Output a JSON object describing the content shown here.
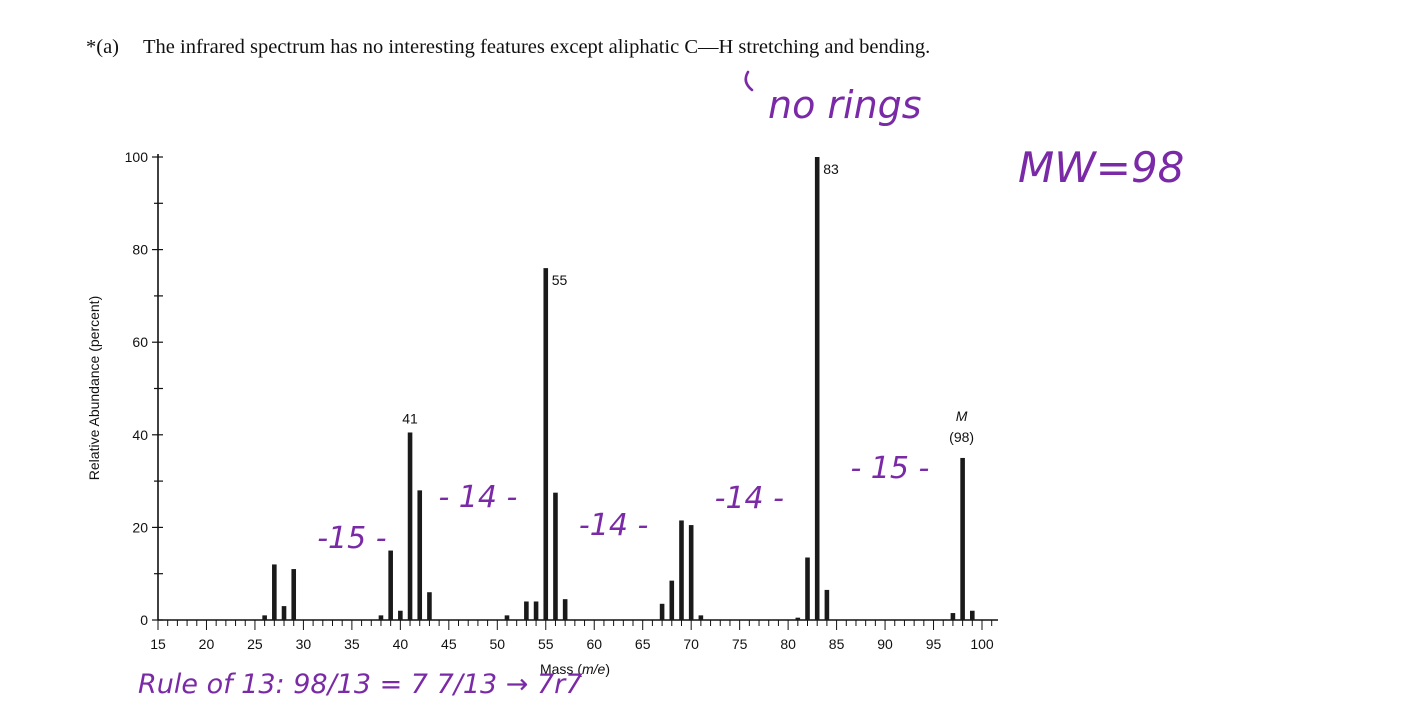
{
  "problem": {
    "number": "*(a)",
    "text": "The infrared spectrum has no interesting features except aliphatic C—H stretching and bending."
  },
  "chart_data": {
    "type": "bar",
    "xlabel_prefix": "Mass (",
    "xlabel_italic": "m/e",
    "xlabel_suffix": ")",
    "ylabel": "Relative Abundance (percent)",
    "xlim": [
      15,
      100
    ],
    "ylim": [
      0,
      100
    ],
    "xticks": [
      15,
      20,
      25,
      30,
      35,
      40,
      45,
      50,
      55,
      60,
      65,
      70,
      75,
      80,
      85,
      90,
      95,
      100
    ],
    "yticks": [
      0,
      20,
      40,
      60,
      80,
      100
    ],
    "peaks": [
      {
        "x": 26,
        "y": 1
      },
      {
        "x": 27,
        "y": 12
      },
      {
        "x": 28,
        "y": 3
      },
      {
        "x": 29,
        "y": 11
      },
      {
        "x": 38,
        "y": 1
      },
      {
        "x": 39,
        "y": 15
      },
      {
        "x": 40,
        "y": 2
      },
      {
        "x": 41,
        "y": 40.5
      },
      {
        "x": 42,
        "y": 28
      },
      {
        "x": 43,
        "y": 6
      },
      {
        "x": 51,
        "y": 1
      },
      {
        "x": 53,
        "y": 4
      },
      {
        "x": 54,
        "y": 4
      },
      {
        "x": 55,
        "y": 76
      },
      {
        "x": 56,
        "y": 27.5
      },
      {
        "x": 57,
        "y": 4.5
      },
      {
        "x": 67,
        "y": 3.5
      },
      {
        "x": 68,
        "y": 8.5
      },
      {
        "x": 69,
        "y": 21.5
      },
      {
        "x": 70,
        "y": 20.5
      },
      {
        "x": 71,
        "y": 1
      },
      {
        "x": 81,
        "y": 0.5
      },
      {
        "x": 82,
        "y": 13.5
      },
      {
        "x": 83,
        "y": 100
      },
      {
        "x": 84,
        "y": 6.5
      },
      {
        "x": 97,
        "y": 1.5
      },
      {
        "x": 98,
        "y": 35
      },
      {
        "x": 99,
        "y": 2
      }
    ],
    "peak_labels": [
      {
        "x": 41,
        "text": "41"
      },
      {
        "x": 55,
        "text": "55"
      },
      {
        "x": 83,
        "text": "83"
      }
    ],
    "molecular_ion": {
      "x": 98,
      "symbol": "M",
      "value": "(98)"
    }
  },
  "annotations": {
    "no_rings": "no rings",
    "mw": "MW=98",
    "rule_of_13": "Rule of 13: 98/13 = 7 7/13 → 7r7",
    "gaps": [
      {
        "text": "-15 -",
        "from": 29,
        "to": 41
      },
      {
        "text": "- 14 -",
        "from": 41,
        "to": 55
      },
      {
        "text": "-14 -",
        "from": 55,
        "to": 69
      },
      {
        "text": "-14 -",
        "from": 69,
        "to": 83
      },
      {
        "text": "- 15 -",
        "from": 83,
        "to": 98
      }
    ]
  }
}
